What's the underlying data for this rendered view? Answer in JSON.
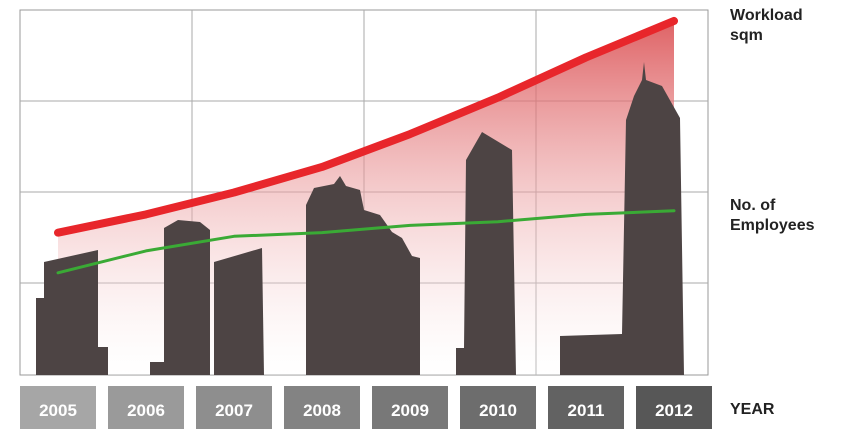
{
  "chart_data": {
    "type": "line",
    "categories": [
      "2005",
      "2006",
      "2007",
      "2008",
      "2009",
      "2010",
      "2011",
      "2012"
    ],
    "x_label": "YEAR",
    "ylim": [
      0,
      100
    ],
    "series": [
      {
        "name": "Workload sqm",
        "color": "#e8262b",
        "values": [
          39,
          44,
          50,
          57,
          66,
          76,
          87,
          97
        ]
      },
      {
        "name": "No. of Employees",
        "color": "#3aaa35",
        "values": [
          28,
          34,
          38,
          39,
          41,
          42,
          44,
          45
        ]
      }
    ]
  }
}
